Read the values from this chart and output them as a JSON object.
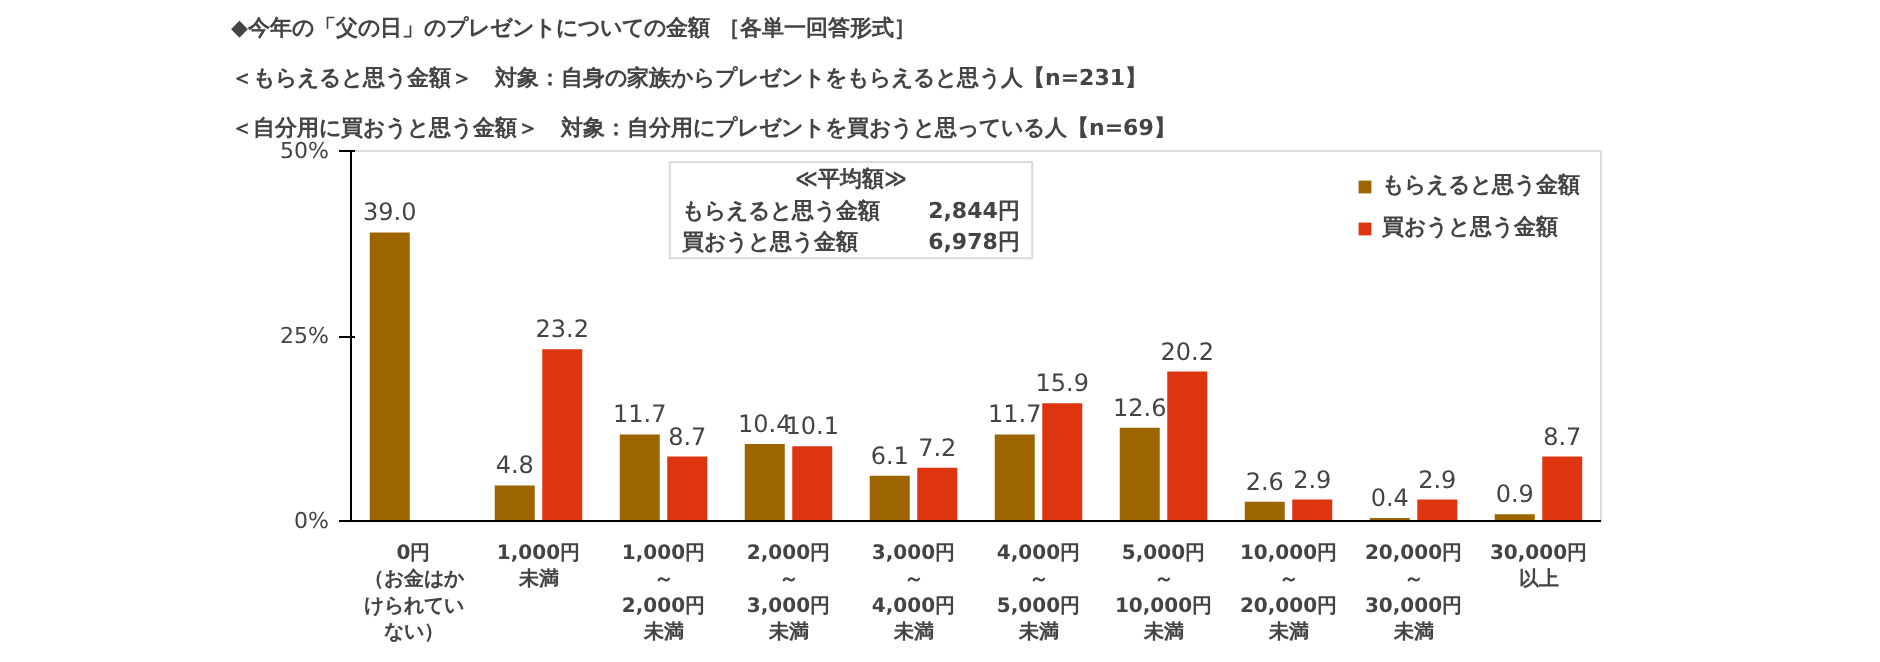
{
  "chart_data": {
    "type": "bar",
    "title": "◆今年の「父の日」のプレゼントについての金額 ［各単一回答形式］",
    "subtitle": "＜もらえると思う金額＞　対象：自身の家族からプレゼントをもらえると思う人【n=231】",
    "categories": [
      "0円（お金はかけられていない）",
      "1,000円未満",
      "1,000円～2,000円未満",
      "2,000円～3,000円未満",
      "3,000円～4,000円未満",
      "4,000円～5,000円未満",
      "5,000円～10,000円未満",
      "10,000円～20,000円未満",
      "20,000円～30,000円未満",
      "30,000円以上"
    ],
    "series": [
      {
        "name": "もらえると思う金額",
        "color": "#9c6500",
        "values": [
          39.0,
          4.8,
          11.7,
          10.4,
          6.1,
          11.7,
          12.6,
          2.6,
          0.4,
          0.9
        ],
        "value_labels": [
          "39.0",
          "4.8",
          "11.7",
          "10.4",
          "6.1",
          "11.7",
          "12.6",
          "2.6",
          "0.4",
          "0.9"
        ]
      },
      {
        "name": "買おうと思う金額",
        "color": "#dc3510",
        "values": [
          null,
          23.2,
          8.7,
          10.1,
          7.2,
          15.9,
          20.2,
          2.9,
          2.9,
          8.7
        ],
        "value_labels": [
          null,
          "23.2",
          "8.7",
          "10.1",
          "7.2",
          "15.9",
          "20.2",
          "2.9",
          "2.9",
          "8.7"
        ]
      }
    ],
    "ylim": [
      0,
      50
    ],
    "yticks": [
      {
        "value": 0,
        "label": "0%"
      },
      {
        "value": 25,
        "label": "25%"
      },
      {
        "value": 50,
        "label": "50%"
      }
    ],
    "annotations": [
      "＜自分用に買おうと思う金額＞　対象：自分用にプレゼントを買おうと思っている人【n=69】",
      "≪平均額≫",
      "もらえると思う金額",
      "2,844円",
      "買おうと思う金額",
      "6,978円"
    ],
    "legend": "top right",
    "grid": false
  }
}
